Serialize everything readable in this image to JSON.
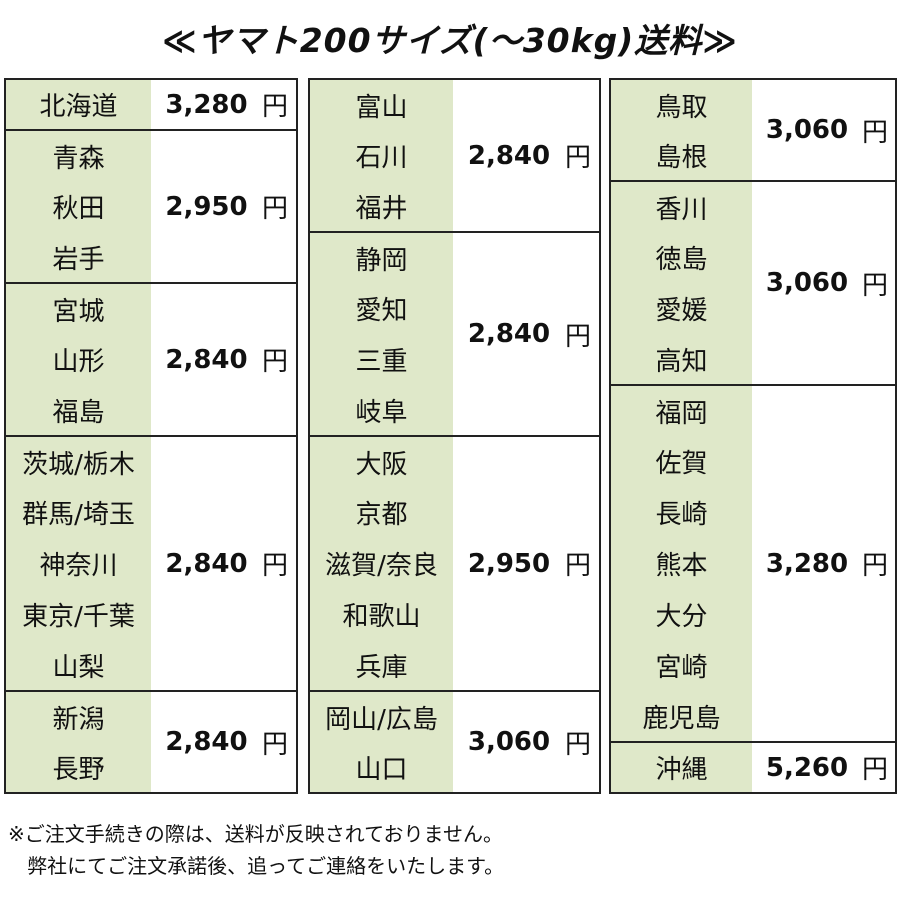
{
  "title": "≪ヤマト200サイズ(～30kg)送料≫",
  "unit": "円",
  "columns": [
    {
      "groups": [
        {
          "prefectures": [
            "北海道"
          ],
          "price": "3,280"
        },
        {
          "prefectures": [
            "青森",
            "秋田",
            "岩手"
          ],
          "price": "2,950"
        },
        {
          "prefectures": [
            "宮城",
            "山形",
            "福島"
          ],
          "price": "2,840"
        },
        {
          "prefectures": [
            "茨城/栃木",
            "群馬/埼玉",
            "神奈川",
            "東京/千葉",
            "山梨"
          ],
          "price": "2,840"
        },
        {
          "prefectures": [
            "新潟",
            "長野"
          ],
          "price": "2,840"
        }
      ]
    },
    {
      "groups": [
        {
          "prefectures": [
            "富山",
            "石川",
            "福井"
          ],
          "price": "2,840"
        },
        {
          "prefectures": [
            "静岡",
            "愛知",
            "三重",
            "岐阜"
          ],
          "price": "2,840"
        },
        {
          "prefectures": [
            "大阪",
            "京都",
            "滋賀/奈良",
            "和歌山",
            "兵庫"
          ],
          "price": "2,950"
        },
        {
          "prefectures": [
            "岡山/広島",
            "山口"
          ],
          "price": "3,060"
        }
      ]
    },
    {
      "groups": [
        {
          "prefectures": [
            "鳥取",
            "島根"
          ],
          "price": "3,060"
        },
        {
          "prefectures": [
            "香川",
            "徳島",
            "愛媛",
            "高知"
          ],
          "price": "3,060"
        },
        {
          "prefectures": [
            "福岡",
            "佐賀",
            "長崎",
            "熊本",
            "大分",
            "宮崎",
            "鹿児島"
          ],
          "price": "3,280"
        },
        {
          "prefectures": [
            "沖縄"
          ],
          "price": "5,260"
        }
      ]
    }
  ],
  "note": {
    "line1": "※ご注文手続きの際は、送料が反映されておりません。",
    "line2": "弊社にてご注文承諾後、追ってご連絡をいたします。"
  }
}
